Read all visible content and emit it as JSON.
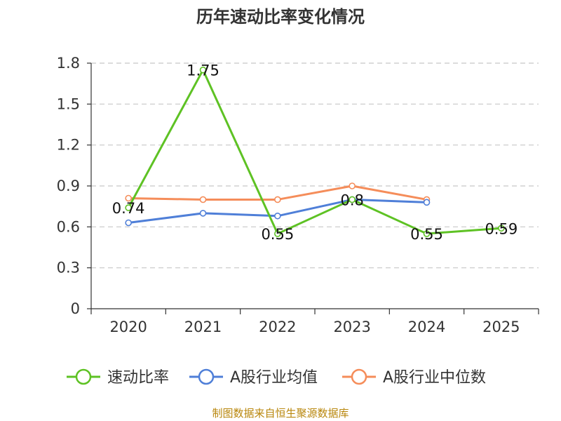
{
  "chart_data": {
    "type": "line",
    "title": "历年速动比率变化情况",
    "categories": [
      "2020",
      "2021",
      "2022",
      "2023",
      "2024",
      "2025"
    ],
    "ylim": [
      0,
      1.8
    ],
    "yticks": [
      "0",
      "0.3",
      "0.6",
      "0.9",
      "1.2",
      "1.5",
      "1.8"
    ],
    "grid": true,
    "legend_position": "bottom",
    "series": [
      {
        "name": "速动比率",
        "color": "#5ec224",
        "values": [
          0.74,
          1.75,
          0.55,
          0.8,
          0.55,
          0.59
        ],
        "labels": [
          "0.74",
          "1.75",
          "0.55",
          "0.8",
          "0.55",
          "0.59"
        ]
      },
      {
        "name": "A股行业均值",
        "color": "#4f7fd8",
        "values": [
          0.63,
          0.7,
          0.68,
          0.8,
          0.78,
          null
        ]
      },
      {
        "name": "A股行业中位数",
        "color": "#f58d5a",
        "values": [
          0.81,
          0.8,
          0.8,
          0.9,
          0.8,
          null
        ]
      }
    ]
  },
  "source": "制图数据来自恒生聚源数据库"
}
